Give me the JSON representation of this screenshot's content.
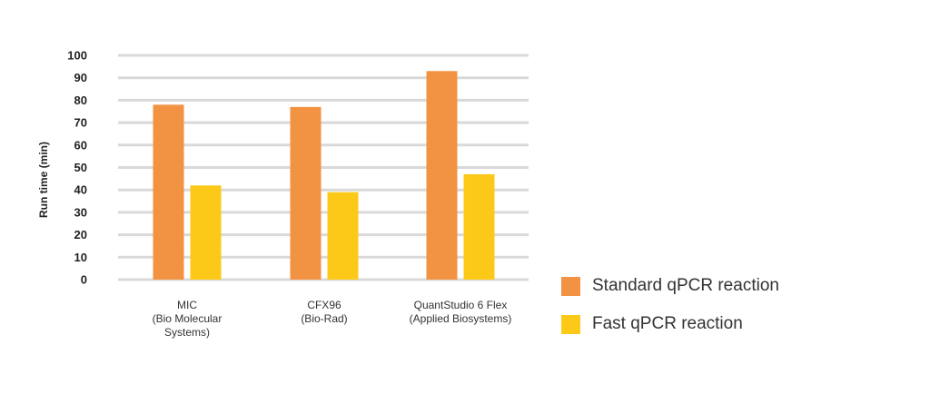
{
  "chart_data": {
    "type": "bar",
    "categories": [
      [
        "MIC",
        "(Bio Molecular",
        "Systems)"
      ],
      [
        "CFX96",
        "(Bio-Rad)"
      ],
      [
        "QuantStudio 6 Flex",
        "(Applied Biosystems)"
      ]
    ],
    "series": [
      {
        "name": "Standard qPCR reaction",
        "values": [
          78,
          77,
          93
        ],
        "color": "#F29243"
      },
      {
        "name": "Fast qPCR reaction",
        "values": [
          42,
          39,
          47
        ],
        "color": "#FCC919"
      }
    ],
    "ylabel": "Run time (min)",
    "ylim": [
      0,
      100
    ],
    "yticks": [
      0,
      10,
      20,
      30,
      40,
      50,
      60,
      70,
      80,
      90,
      100
    ],
    "grid": true,
    "legend_position": "right"
  }
}
